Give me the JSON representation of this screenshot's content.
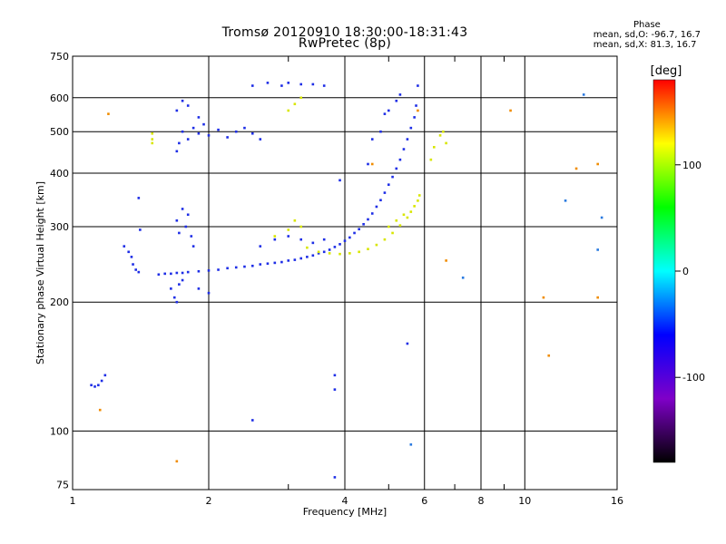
{
  "chart_data": {
    "type": "scatter",
    "title": "Tromsø 20120910 18:30:00-18:31:43",
    "subtitle": "RwPretec (8p)",
    "xlabel": "Frequency [MHz]",
    "ylabel": "Stationary phase Virtual Height [km]",
    "x_scale": "log",
    "y_scale": "log",
    "xlim": [
      1,
      16
    ],
    "ylim": [
      73,
      750
    ],
    "x_ticks": [
      1,
      2,
      4,
      6,
      8,
      10,
      16
    ],
    "y_ticks": [
      75,
      100,
      200,
      300,
      400,
      500,
      600,
      750
    ],
    "grid": true,
    "phase_stats": {
      "heading": "Phase",
      "o_line": "mean, sd,O: -96.7, 16.7",
      "x_line": "mean, sd,X:  81.3, 16.7"
    },
    "colorbar": {
      "label": "[deg]",
      "ticks": [
        "100",
        "0",
        "-100"
      ],
      "range": [
        -180,
        180
      ],
      "colors": [
        "#000000",
        "#7f00c8",
        "#0000ff",
        "#00ffff",
        "#00ff00",
        "#ffff00",
        "#ff0000"
      ]
    },
    "series": [
      {
        "points": [
          [
            1.1,
            128
          ],
          [
            1.12,
            127
          ],
          [
            1.14,
            128
          ],
          [
            1.16,
            131
          ],
          [
            1.18,
            135
          ],
          [
            1.3,
            270
          ],
          [
            1.33,
            262
          ],
          [
            1.35,
            255
          ],
          [
            1.36,
            245
          ],
          [
            1.38,
            238
          ],
          [
            1.4,
            235
          ],
          [
            1.41,
            295
          ],
          [
            1.4,
            350
          ],
          [
            1.55,
            232
          ],
          [
            1.6,
            233
          ],
          [
            1.65,
            233
          ],
          [
            1.7,
            234
          ],
          [
            1.75,
            234
          ],
          [
            1.8,
            235
          ],
          [
            1.9,
            236
          ],
          [
            2.0,
            237
          ],
          [
            2.1,
            238
          ],
          [
            2.2,
            240
          ],
          [
            2.3,
            241
          ],
          [
            2.4,
            242
          ],
          [
            2.5,
            243
          ],
          [
            2.6,
            245
          ],
          [
            2.7,
            246
          ],
          [
            2.8,
            247
          ],
          [
            2.9,
            248
          ],
          [
            3.0,
            250
          ],
          [
            3.1,
            251
          ],
          [
            3.2,
            253
          ],
          [
            3.3,
            255
          ],
          [
            3.4,
            257
          ],
          [
            3.5,
            260
          ],
          [
            3.6,
            262
          ],
          [
            3.7,
            265
          ],
          [
            3.8,
            269
          ],
          [
            3.9,
            273
          ],
          [
            4.0,
            278
          ],
          [
            4.1,
            283
          ],
          [
            4.2,
            290
          ],
          [
            4.3,
            296
          ],
          [
            4.4,
            304
          ],
          [
            4.5,
            312
          ],
          [
            4.6,
            322
          ],
          [
            4.7,
            334
          ],
          [
            4.8,
            346
          ],
          [
            4.9,
            360
          ],
          [
            5.0,
            376
          ],
          [
            5.1,
            392
          ],
          [
            5.2,
            410
          ],
          [
            5.3,
            430
          ],
          [
            5.4,
            455
          ],
          [
            5.5,
            480
          ],
          [
            5.6,
            510
          ],
          [
            5.7,
            540
          ],
          [
            5.75,
            575
          ],
          [
            5.8,
            640
          ],
          [
            1.7,
            310
          ],
          [
            1.72,
            290
          ],
          [
            1.75,
            330
          ],
          [
            1.78,
            300
          ],
          [
            1.8,
            320
          ],
          [
            1.83,
            285
          ],
          [
            1.85,
            270
          ],
          [
            1.65,
            215
          ],
          [
            1.68,
            205
          ],
          [
            1.7,
            200
          ],
          [
            1.72,
            220
          ],
          [
            1.75,
            225
          ],
          [
            1.9,
            215
          ],
          [
            2.0,
            210
          ],
          [
            1.7,
            450
          ],
          [
            1.72,
            470
          ],
          [
            1.75,
            500
          ],
          [
            1.8,
            480
          ],
          [
            1.85,
            510
          ],
          [
            1.9,
            495
          ],
          [
            1.95,
            520
          ],
          [
            2.0,
            490
          ],
          [
            2.1,
            505
          ],
          [
            2.2,
            485
          ],
          [
            2.3,
            500
          ],
          [
            2.4,
            510
          ],
          [
            2.5,
            495
          ],
          [
            2.6,
            480
          ],
          [
            1.7,
            560
          ],
          [
            1.75,
            590
          ],
          [
            1.8,
            575
          ],
          [
            1.9,
            540
          ],
          [
            2.5,
            640
          ],
          [
            2.7,
            650
          ],
          [
            2.9,
            640
          ],
          [
            3.0,
            650
          ],
          [
            3.2,
            645
          ],
          [
            3.4,
            645
          ],
          [
            3.6,
            640
          ],
          [
            2.6,
            270
          ],
          [
            2.8,
            280
          ],
          [
            3.0,
            285
          ],
          [
            3.2,
            280
          ],
          [
            3.4,
            275
          ],
          [
            3.6,
            280
          ],
          [
            3.9,
            385
          ],
          [
            4.5,
            420
          ],
          [
            4.6,
            480
          ],
          [
            4.8,
            500
          ],
          [
            4.9,
            550
          ],
          [
            5.0,
            560
          ],
          [
            5.2,
            590
          ],
          [
            5.3,
            610
          ],
          [
            3.8,
            135
          ],
          [
            3.8,
            125
          ],
          [
            2.5,
            106
          ],
          [
            3.8,
            78
          ],
          [
            5.5,
            160
          ]
        ]
      },
      {
        "points": [
          [
            3.3,
            268
          ],
          [
            3.5,
            262
          ],
          [
            3.7,
            260
          ],
          [
            3.9,
            259
          ],
          [
            4.1,
            260
          ],
          [
            4.3,
            262
          ],
          [
            4.5,
            266
          ],
          [
            4.7,
            272
          ],
          [
            4.9,
            280
          ],
          [
            5.1,
            290
          ],
          [
            5.3,
            302
          ],
          [
            5.5,
            315
          ],
          [
            5.6,
            325
          ],
          [
            5.7,
            335
          ],
          [
            5.8,
            345
          ],
          [
            5.85,
            355
          ],
          [
            6.2,
            430
          ],
          [
            6.3,
            460
          ],
          [
            6.5,
            490
          ],
          [
            6.6,
            500
          ],
          [
            6.7,
            470
          ],
          [
            2.8,
            285
          ],
          [
            3.0,
            295
          ],
          [
            3.1,
            310
          ],
          [
            3.2,
            300
          ],
          [
            5.0,
            300
          ],
          [
            5.2,
            310
          ],
          [
            5.4,
            320
          ],
          [
            3.0,
            560
          ],
          [
            3.1,
            580
          ],
          [
            3.2,
            600
          ],
          [
            1.5,
            495
          ],
          [
            1.5,
            480
          ],
          [
            1.5,
            470
          ]
        ]
      },
      {
        "points": [
          [
            1.2,
            550
          ],
          [
            1.15,
            112
          ],
          [
            4.6,
            420
          ],
          [
            5.8,
            560
          ],
          [
            9.3,
            560
          ],
          [
            11.0,
            205
          ],
          [
            14.5,
            205
          ],
          [
            14.5,
            420
          ],
          [
            13.0,
            410
          ],
          [
            11.3,
            150
          ],
          [
            6.7,
            250
          ],
          [
            1.7,
            85
          ]
        ]
      },
      {
        "points": [
          [
            14.5,
            265
          ],
          [
            7.3,
            228
          ],
          [
            5.6,
            93
          ],
          [
            12.3,
            345
          ],
          [
            14.8,
            315
          ],
          [
            13.5,
            610
          ]
        ]
      }
    ]
  }
}
